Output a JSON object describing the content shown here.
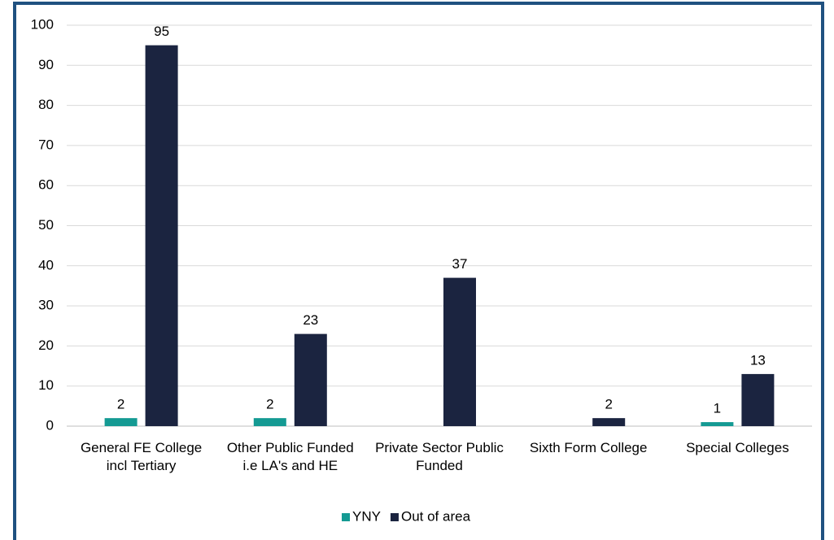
{
  "chart_data": {
    "type": "bar",
    "categories": [
      "General FE College incl Tertiary",
      "Other Public Funded i.e LA's and HE",
      "Private Sector Public Funded",
      "Sixth Form College",
      "Special Colleges"
    ],
    "series": [
      {
        "name": "YNY",
        "color": "#149a93",
        "values": [
          2,
          2,
          null,
          null,
          1
        ]
      },
      {
        "name": "Out of area",
        "color": "#1b2440",
        "values": [
          95,
          23,
          37,
          2,
          13
        ]
      }
    ],
    "ylim": [
      0,
      100
    ],
    "yticks": [
      0,
      10,
      20,
      30,
      40,
      50,
      60,
      70,
      80,
      90,
      100
    ],
    "grid": true,
    "legend": "bottom"
  }
}
